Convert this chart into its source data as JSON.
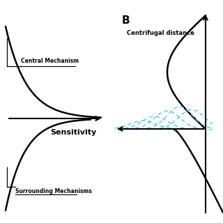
{
  "bg_color": "#ffffff",
  "title_B": "B",
  "label_central": "Central Mechanism",
  "label_surrounding": "Surrounding Mechanisms",
  "label_sensitivity": "Sensitivity",
  "label_centrifugal": "Centrifugal distance",
  "cyan_color": "#4DC8E8",
  "curve_color": "#000000",
  "figsize": [
    3.2,
    3.2
  ],
  "dpi": 100
}
